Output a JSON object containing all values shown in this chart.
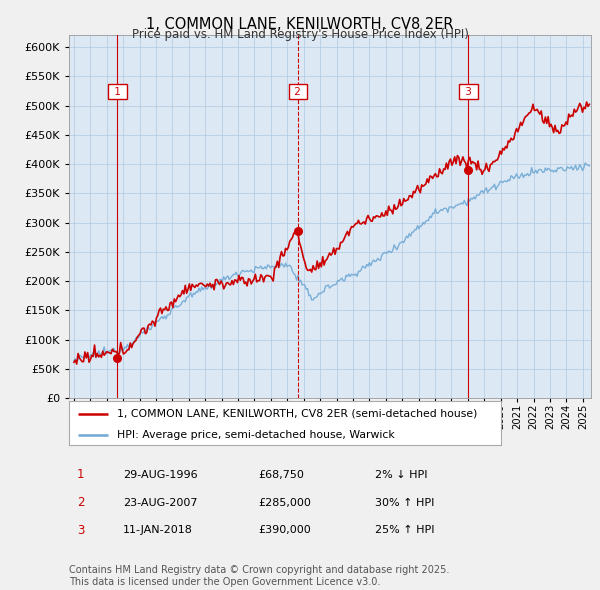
{
  "title": "1, COMMON LANE, KENILWORTH, CV8 2ER",
  "subtitle": "Price paid vs. HM Land Registry's House Price Index (HPI)",
  "ylim": [
    0,
    620000
  ],
  "yticks": [
    0,
    50000,
    100000,
    150000,
    200000,
    250000,
    300000,
    350000,
    400000,
    450000,
    500000,
    550000,
    600000
  ],
  "xlim_start": 1993.7,
  "xlim_end": 2025.5,
  "bg_color": "#f0f0f0",
  "plot_bg_color": "#dce9f5",
  "grid_color": "#b0c8e0",
  "hpi_color": "#6fa8d4",
  "price_color": "#cc0000",
  "vline_color_solid": "#cc0000",
  "vline_color_dash": "#cc0000",
  "legend_text_price": "1, COMMON LANE, KENILWORTH, CV8 2ER (semi-detached house)",
  "legend_text_hpi": "HPI: Average price, semi-detached house, Warwick",
  "transactions": [
    {
      "num": 1,
      "date_num": 1996.65,
      "price": 68750,
      "label": "1",
      "vline_style": "solid"
    },
    {
      "num": 2,
      "date_num": 2007.64,
      "price": 285000,
      "label": "2",
      "vline_style": "dashed"
    },
    {
      "num": 3,
      "date_num": 2018.03,
      "price": 390000,
      "label": "3",
      "vline_style": "solid"
    }
  ],
  "table_rows": [
    {
      "num": "1",
      "date": "29-AUG-1996",
      "price": "£68,750",
      "hpi": "2% ↓ HPI"
    },
    {
      "num": "2",
      "date": "23-AUG-2007",
      "price": "£285,000",
      "hpi": "30% ↑ HPI"
    },
    {
      "num": "3",
      "date": "11-JAN-2018",
      "price": "£390,000",
      "hpi": "25% ↑ HPI"
    }
  ],
  "footer": "Contains HM Land Registry data © Crown copyright and database right 2025.\nThis data is licensed under the Open Government Licence v3.0."
}
